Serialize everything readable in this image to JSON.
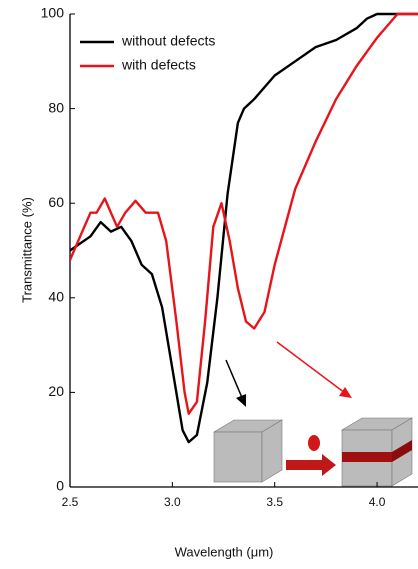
{
  "chart_data": {
    "type": "line",
    "x_label": "Wavelength (μm)",
    "y_label": "Transmittance (%)",
    "xlim": [
      2.5,
      4.2
    ],
    "ylim": [
      0,
      100
    ],
    "xticks": [
      2.5,
      {
        "value": 3,
        "label": "3.0"
      },
      3.5,
      {
        "value": 4,
        "label": "4.0"
      }
    ],
    "yticks": [
      0,
      20,
      40,
      60,
      80,
      100
    ],
    "legend": "upper left",
    "series": [
      {
        "name": "without defects",
        "color": "#000000",
        "x": [
          2.5,
          2.6,
          2.65,
          2.7,
          2.75,
          2.8,
          2.85,
          2.9,
          2.95,
          3.0,
          3.05,
          3.08,
          3.12,
          3.17,
          3.22,
          3.27,
          3.32,
          3.35,
          3.4,
          3.5,
          3.6,
          3.7,
          3.8,
          3.9,
          3.95,
          4.0,
          4.2
        ],
        "values": [
          50,
          53,
          56,
          54,
          55,
          52,
          47,
          45,
          38,
          25,
          12,
          9.5,
          11,
          22,
          40,
          62,
          77,
          80,
          82,
          87,
          90,
          93,
          94.5,
          97,
          99,
          100,
          100
        ]
      },
      {
        "name": "with defects",
        "color": "#e8141b",
        "x": [
          2.5,
          2.55,
          2.6,
          2.63,
          2.67,
          2.7,
          2.73,
          2.77,
          2.82,
          2.87,
          2.93,
          2.97,
          3.02,
          3.06,
          3.08,
          3.12,
          3.16,
          3.2,
          3.24,
          3.28,
          3.32,
          3.36,
          3.4,
          3.45,
          3.5,
          3.6,
          3.7,
          3.8,
          3.9,
          4.0,
          4.1,
          4.2
        ],
        "values": [
          48,
          53,
          58,
          58,
          61,
          58,
          55,
          58,
          60.5,
          58,
          58,
          52,
          35,
          20,
          15.5,
          18,
          35,
          55,
          60,
          52,
          42,
          35,
          33.5,
          37,
          47,
          63,
          73,
          82,
          89,
          95,
          100,
          100
        ]
      }
    ]
  }
}
